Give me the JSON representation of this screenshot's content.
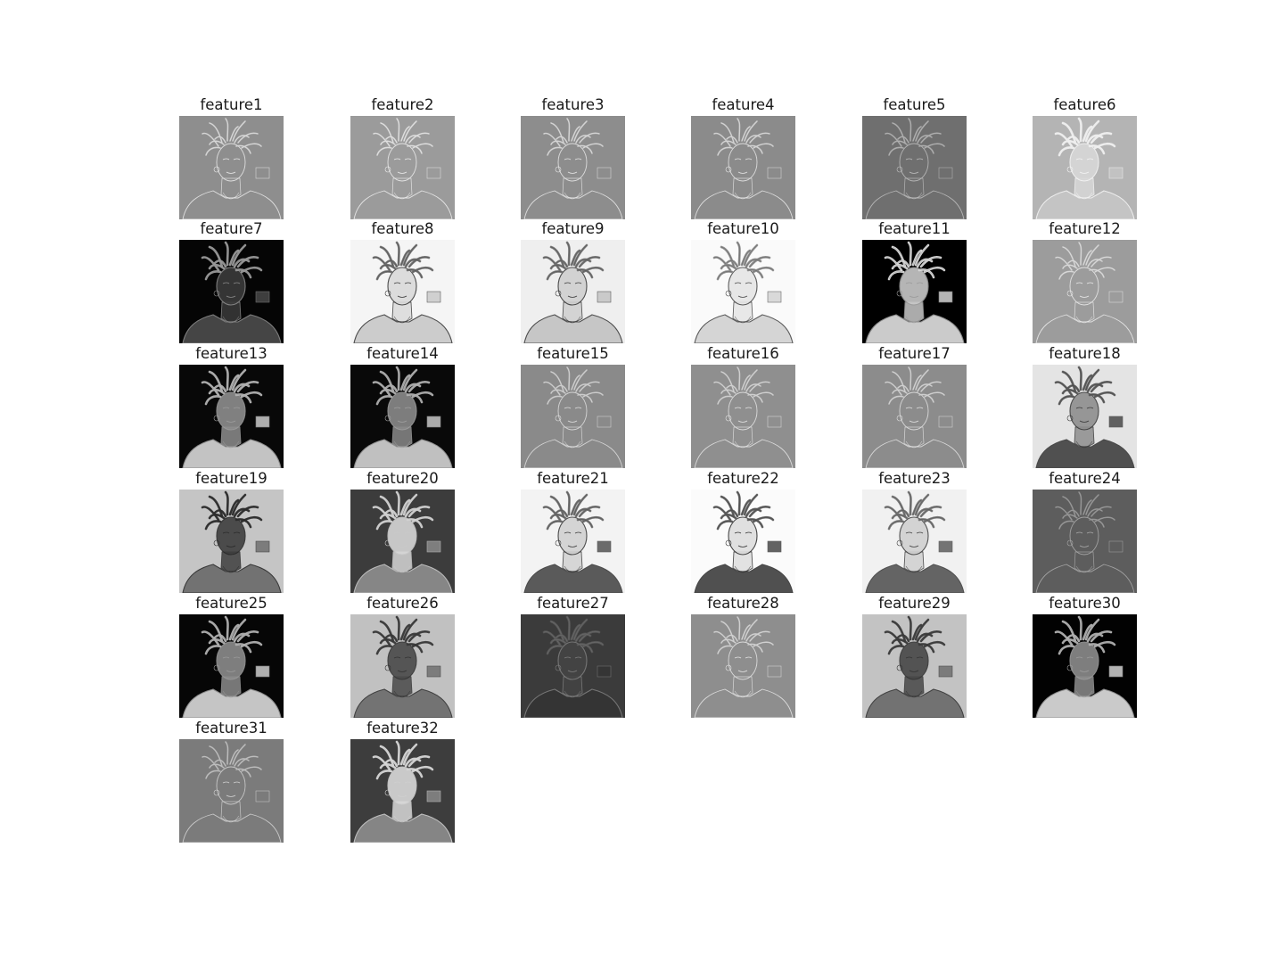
{
  "figure": {
    "columns": 6,
    "panels": [
      {
        "title": "feature1",
        "bg": "#8e8e8e",
        "ink": "#e8e8e8",
        "variant": "edge",
        "face": "#8e8e8e",
        "hair": "#cfcfcf",
        "shoulders": "#8e8e8e"
      },
      {
        "title": "feature2",
        "bg": "#9b9b9b",
        "ink": "#ececec",
        "variant": "edge",
        "face": "#9b9b9b",
        "hair": "#d8d8d8",
        "shoulders": "#9b9b9b"
      },
      {
        "title": "feature3",
        "bg": "#8d8d8d",
        "ink": "#e6e6e6",
        "variant": "edge",
        "face": "#8d8d8d",
        "hair": "#cdcdcd",
        "shoulders": "#8d8d8d"
      },
      {
        "title": "feature4",
        "bg": "#8b8b8b",
        "ink": "#e4e4e4",
        "variant": "edge",
        "face": "#8b8b8b",
        "hair": "#cbcbcb",
        "shoulders": "#8b8b8b"
      },
      {
        "title": "feature5",
        "bg": "#6f6f6f",
        "ink": "#bdbdbd",
        "variant": "edge",
        "face": "#6f6f6f",
        "hair": "#a9a9a9",
        "shoulders": "#6f6f6f"
      },
      {
        "title": "feature6",
        "bg": "#b4b4b4",
        "ink": "#f4f4f4",
        "variant": "relief",
        "face": "#d8d8d8",
        "hair": "#eeeeee",
        "shoulders": "#c6c6c6"
      },
      {
        "title": "feature7",
        "bg": "#050505",
        "ink": "#8a8a8a",
        "variant": "photo",
        "face": "#3b3b3b",
        "hair": "#9a9a9a",
        "shoulders": "#4d4d4d"
      },
      {
        "title": "feature8",
        "bg": "#f5f5f5",
        "ink": "#3a3a3a",
        "variant": "inverse",
        "face": "#dadada",
        "hair": "#6d6d6d",
        "shoulders": "#c8c8c8"
      },
      {
        "title": "feature9",
        "bg": "#efefef",
        "ink": "#3c3c3c",
        "variant": "inverse",
        "face": "#cfcfcf",
        "hair": "#707070",
        "shoulders": "#c2c2c2"
      },
      {
        "title": "feature10",
        "bg": "#fafafa",
        "ink": "#4a4a4a",
        "variant": "inverse",
        "face": "#e6e6e6",
        "hair": "#8a8a8a",
        "shoulders": "#d2d2d2"
      },
      {
        "title": "feature11",
        "bg": "#000000",
        "ink": "#9a9a9a",
        "variant": "photo",
        "face": "#c9c9c9",
        "hair": "#dcdcdc",
        "shoulders": "#e2e2e2"
      },
      {
        "title": "feature12",
        "bg": "#9c9c9c",
        "ink": "#e9e9e9",
        "variant": "edge",
        "face": "#9c9c9c",
        "hair": "#d0d0d0",
        "shoulders": "#9c9c9c"
      },
      {
        "title": "feature13",
        "bg": "#080808",
        "ink": "#9c9c9c",
        "variant": "photo",
        "face": "#8d8d8d",
        "hair": "#b5b5b5",
        "shoulders": "#d8d8d8"
      },
      {
        "title": "feature14",
        "bg": "#090909",
        "ink": "#9f9f9f",
        "variant": "photo",
        "face": "#8a8a8a",
        "hair": "#b0b0b0",
        "shoulders": "#d4d4d4"
      },
      {
        "title": "feature15",
        "bg": "#8a8a8a",
        "ink": "#dddddd",
        "variant": "edge",
        "face": "#8a8a8a",
        "hair": "#c6c6c6",
        "shoulders": "#8a8a8a"
      },
      {
        "title": "feature16",
        "bg": "#8f8f8f",
        "ink": "#e3e3e3",
        "variant": "edge",
        "face": "#8f8f8f",
        "hair": "#c8c8c8",
        "shoulders": "#8f8f8f"
      },
      {
        "title": "feature17",
        "bg": "#8c8c8c",
        "ink": "#e0e0e0",
        "variant": "edge",
        "face": "#a4a4a4",
        "hair": "#c8c8c8",
        "shoulders": "#9a9a9a"
      },
      {
        "title": "feature18",
        "bg": "#e4e4e4",
        "ink": "#3a3a3a",
        "variant": "inverse",
        "face": "#8e8e8e",
        "hair": "#5a5a5a",
        "shoulders": "#404040"
      },
      {
        "title": "feature19",
        "bg": "#c5c5c5",
        "ink": "#2a2a2a",
        "variant": "inverse",
        "face": "#3e3e3e",
        "hair": "#2c2c2c",
        "shoulders": "#6a6a6a"
      },
      {
        "title": "feature20",
        "bg": "#3c3c3c",
        "ink": "#c9c9c9",
        "variant": "photo",
        "face": "#d7d7d7",
        "hair": "#d2d2d2",
        "shoulders": "#8f8f8f"
      },
      {
        "title": "feature21",
        "bg": "#f3f3f3",
        "ink": "#3b3b3b",
        "variant": "inverse",
        "face": "#d1d1d1",
        "hair": "#6d6d6d",
        "shoulders": "#4a4a4a"
      },
      {
        "title": "feature22",
        "bg": "#fbfbfb",
        "ink": "#333333",
        "variant": "inverse",
        "face": "#dedede",
        "hair": "#5c5c5c",
        "shoulders": "#3e3e3e"
      },
      {
        "title": "feature23",
        "bg": "#f1f1f1",
        "ink": "#404040",
        "variant": "inverse",
        "face": "#d0d0d0",
        "hair": "#727272",
        "shoulders": "#555555"
      },
      {
        "title": "feature24",
        "bg": "#5d5d5d",
        "ink": "#a9a9a9",
        "variant": "edge",
        "face": "#5d5d5d",
        "hair": "#8f8f8f",
        "shoulders": "#5d5d5d"
      },
      {
        "title": "feature25",
        "bg": "#060606",
        "ink": "#9a9a9a",
        "variant": "photo",
        "face": "#8b8b8b",
        "hair": "#b3b3b3",
        "shoulders": "#dadada"
      },
      {
        "title": "feature26",
        "bg": "#c1c1c1",
        "ink": "#333333",
        "variant": "inverse",
        "face": "#4a4a4a",
        "hair": "#3a3a3a",
        "shoulders": "#6b6b6b"
      },
      {
        "title": "feature27",
        "bg": "#3b3b3b",
        "ink": "#7d7d7d",
        "variant": "relief",
        "face": "#444444",
        "hair": "#5a5a5a",
        "shoulders": "#343434"
      },
      {
        "title": "feature28",
        "bg": "#8e8e8e",
        "ink": "#e3e3e3",
        "variant": "edge",
        "face": "#8e8e8e",
        "hair": "#c9c9c9",
        "shoulders": "#8e8e8e"
      },
      {
        "title": "feature29",
        "bg": "#c3c3c3",
        "ink": "#333333",
        "variant": "inverse",
        "face": "#474747",
        "hair": "#3c3c3c",
        "shoulders": "#6a6a6a"
      },
      {
        "title": "feature30",
        "bg": "#020202",
        "ink": "#9d9d9d",
        "variant": "photo",
        "face": "#8c8c8c",
        "hair": "#b2b2b2",
        "shoulders": "#e0e0e0"
      },
      {
        "title": "feature31",
        "bg": "#7b7b7b",
        "ink": "#d2d2d2",
        "variant": "edge",
        "face": "#7b7b7b",
        "hair": "#b5b5b5",
        "shoulders": "#7b7b7b"
      },
      {
        "title": "feature32",
        "bg": "#3d3d3d",
        "ink": "#cfcfcf",
        "variant": "photo",
        "face": "#d9d9d9",
        "hair": "#d6d6d6",
        "shoulders": "#8d8d8d"
      }
    ]
  }
}
